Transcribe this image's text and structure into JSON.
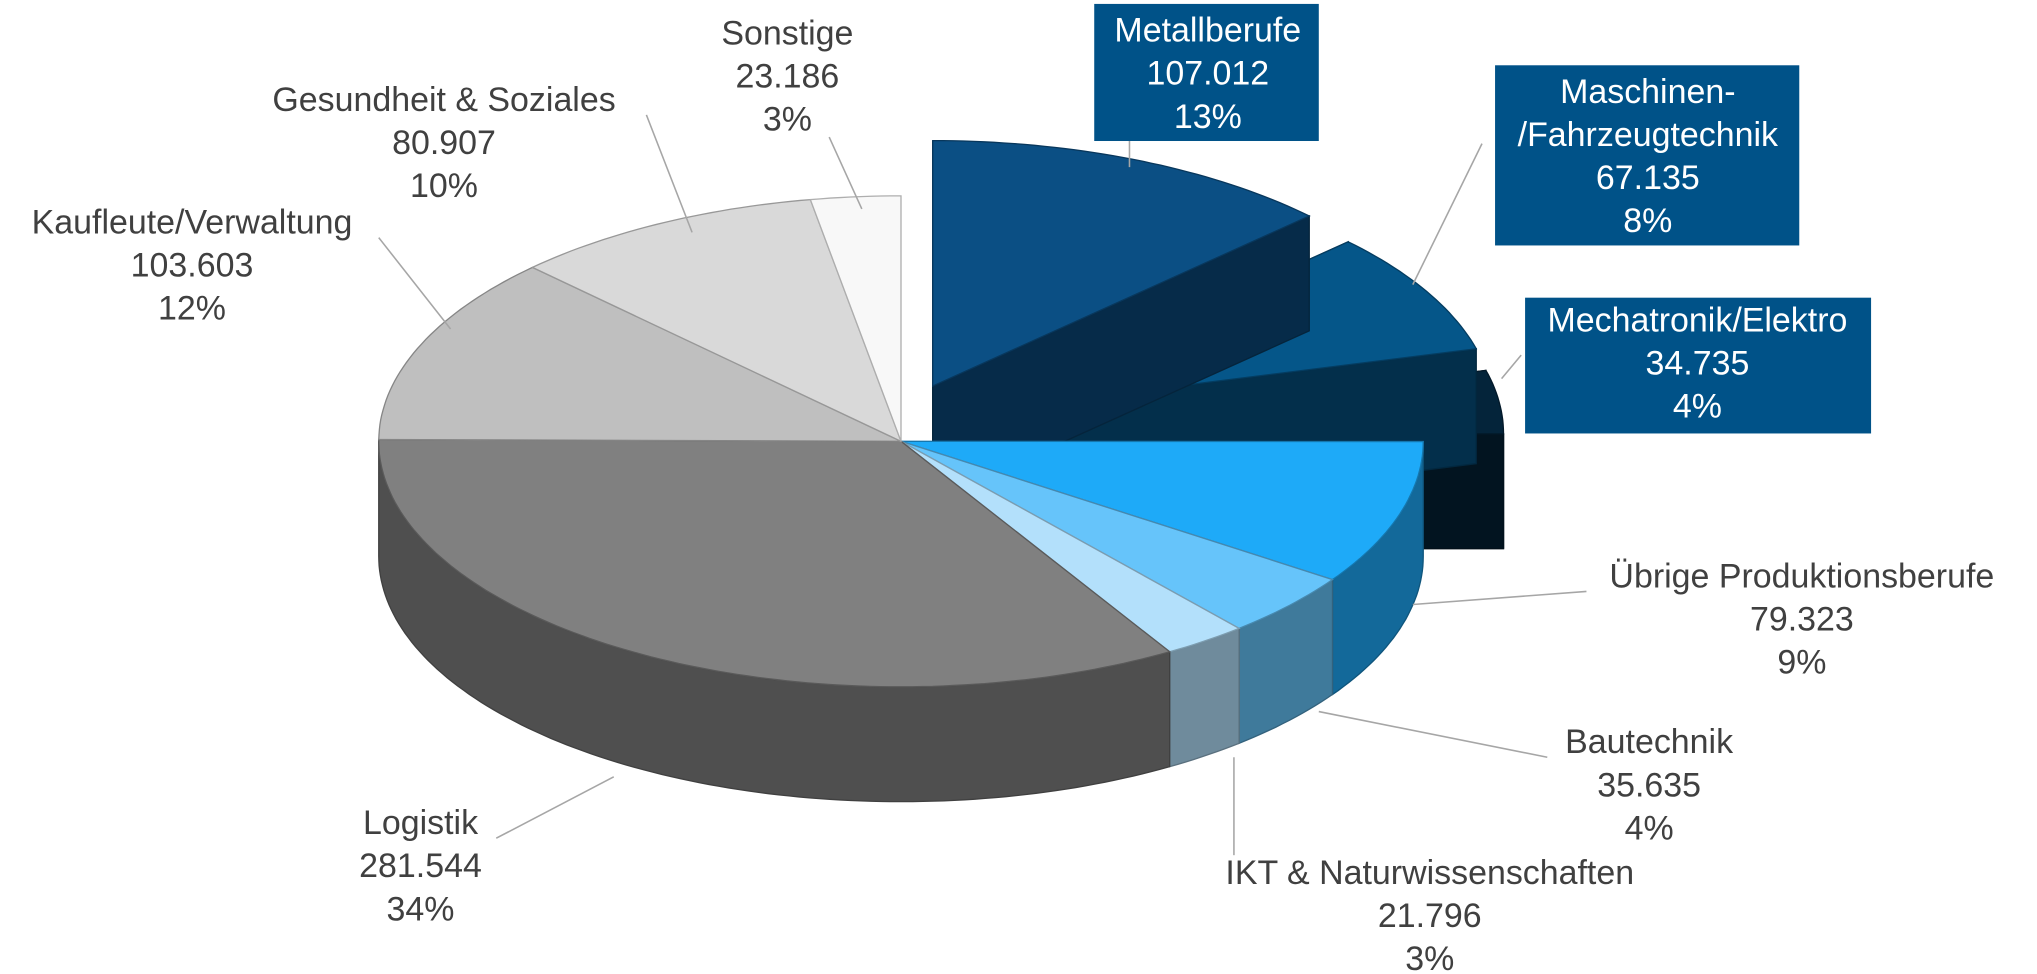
{
  "chart_data": {
    "type": "pie3d",
    "categories": [
      "Metallberufe",
      "Maschinen-\n/Fahrzeugtechnik",
      "Mechatronik/Elektro",
      "Übrige Produktionsberufe",
      "Bautechnik",
      "IKT & Naturwissenschaften",
      "Logistik",
      "Kaufleute/Verwaltung",
      "Gesundheit & Soziales",
      "Sonstige"
    ],
    "values": [
      107012,
      67135,
      34735,
      79323,
      35635,
      21796,
      281544,
      103603,
      80907,
      23186
    ],
    "value_labels": [
      "107.012",
      "67.135",
      "34.735",
      "79.323",
      "35.635",
      "21.796",
      "281.544",
      "103.603",
      "80.907",
      "23.186"
    ],
    "percent_labels": [
      "13%",
      "8%",
      "4%",
      "9%",
      "4%",
      "3%",
      "34%",
      "12%",
      "10%",
      "3%"
    ],
    "colors": [
      "#0b4f84",
      "#055689",
      "#04243a",
      "#1eaaf8",
      "#66c4fa",
      "#b3e0fb",
      "#808080",
      "#bfbfbf",
      "#d9d9d9",
      "#f8f8f8"
    ],
    "exploded": [
      true,
      true,
      true,
      false,
      false,
      false,
      false,
      false,
      false,
      false
    ],
    "label_box_color": "#005288"
  }
}
